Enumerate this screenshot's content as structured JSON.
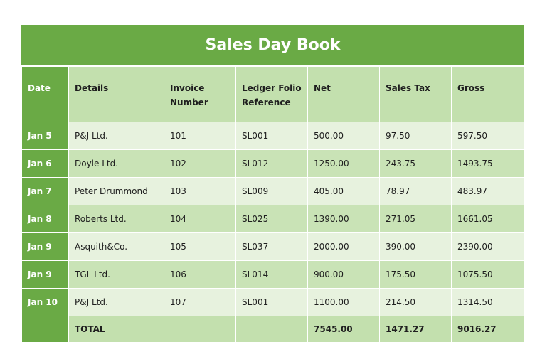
{
  "title": "Sales Day Book",
  "headers": {
    "date": "Date",
    "details": "Details",
    "invoice_1": "Invoice",
    "invoice_2": "Number",
    "ledger_1": "Ledger Folio",
    "ledger_2": "Reference",
    "net": "Net",
    "sales_tax": "Sales Tax",
    "gross": "Gross"
  },
  "rows": [
    {
      "date": "Jan 5",
      "details": "P&J Ltd.",
      "invoice": "101",
      "ref": "SL001",
      "net": "500.00",
      "tax": "97.50",
      "gross": "597.50"
    },
    {
      "date": "Jan 6",
      "details": "Doyle Ltd.",
      "invoice": "102",
      "ref": "SL012",
      "net": "1250.00",
      "tax": "243.75",
      "gross": "1493.75"
    },
    {
      "date": "Jan 7",
      "details": "Peter Drummond",
      "invoice": "103",
      "ref": "SL009",
      "net": "405.00",
      "tax": "78.97",
      "gross": "483.97"
    },
    {
      "date": "Jan 8",
      "details": "Roberts Ltd.",
      "invoice": "104",
      "ref": "SL025",
      "net": "1390.00",
      "tax": "271.05",
      "gross": "1661.05"
    },
    {
      "date": "Jan 9",
      "details": "Asquith&Co.",
      "invoice": "105",
      "ref": "SL037",
      "net": "2000.00",
      "tax": "390.00",
      "gross": "2390.00"
    },
    {
      "date": "Jan 9",
      "details": "TGL Ltd.",
      "invoice": "106",
      "ref": "SL014",
      "net": "900.00",
      "tax": "175.50",
      "gross": "1075.50"
    },
    {
      "date": "Jan 10",
      "details": "P&J Ltd.",
      "invoice": "107",
      "ref": "SL001",
      "net": "1100.00",
      "tax": "214.50",
      "gross": "1314.50"
    }
  ],
  "total": {
    "label": "TOTAL",
    "net": "7545.00",
    "tax": "1471.27",
    "gross": "9016.27"
  },
  "colors": {
    "header_green": "#6aaa45",
    "light_row": "#e7f2de",
    "dark_row": "#c9e3b6"
  }
}
